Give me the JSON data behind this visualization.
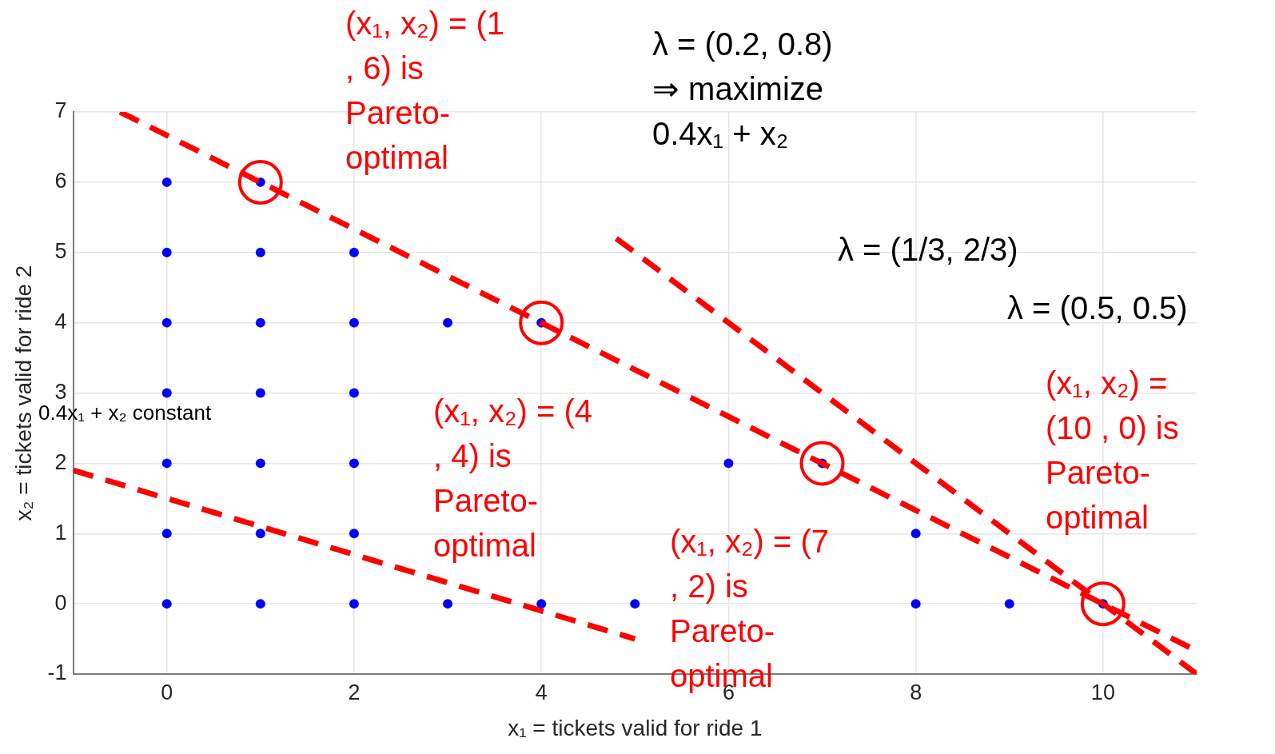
{
  "chart_data": {
    "type": "scatter",
    "xlabel": "x₁ = tickets valid for ride 1",
    "ylabel": "x₂ = tickets valid for ride 2",
    "xlim": [
      -1,
      11
    ],
    "ylim": [
      -1,
      7
    ],
    "xticks": [
      0,
      2,
      4,
      6,
      8,
      10
    ],
    "yticks": [
      -1,
      0,
      1,
      2,
      3,
      4,
      5,
      6,
      7
    ],
    "grid": true,
    "legend": false,
    "marker": "circle",
    "series": [
      {
        "color": "#0000ff",
        "x": [
          0,
          0,
          0,
          0,
          0,
          0,
          0,
          1,
          1,
          1,
          1,
          1,
          1,
          1,
          2,
          2,
          2,
          2,
          2,
          2,
          3,
          3,
          4,
          4,
          5,
          6,
          7,
          8,
          8,
          9,
          10
        ],
        "values": [
          0,
          1,
          2,
          3,
          4,
          5,
          6,
          0,
          1,
          2,
          3,
          4,
          5,
          6,
          0,
          1,
          2,
          3,
          4,
          5,
          0,
          4,
          0,
          4,
          0,
          2,
          2,
          0,
          1,
          0,
          0
        ]
      },
      {
        "color": "#ff0000",
        "x": [
          1,
          4,
          7,
          10
        ],
        "values": [
          6,
          4,
          2,
          0
        ]
      },
      {
        "type": "line",
        "color": "#ff0000",
        "line_style": "dashed",
        "marker": "none",
        "x": [
          -0.5,
          11
        ],
        "values": [
          7,
          -0.67
        ]
      },
      {
        "type": "line",
        "color": "#ff0000",
        "line_style": "dashed",
        "marker": "none",
        "x": [
          -1,
          5
        ],
        "values": [
          1.9,
          -0.5
        ]
      },
      {
        "type": "line",
        "color": "#ff0000",
        "line_style": "dashed",
        "marker": "none",
        "x": [
          4.8,
          11
        ],
        "values": [
          5.2,
          -1
        ]
      }
    ],
    "annotations": [
      "(x₁, x₂) = (1 , 6) is Pareto-optimal",
      "λ = (0.2, 0.8) ⇒ maximize 0.4x₁ + x₂",
      "λ = (1/3, 2/3)",
      "λ = (0.5, 0.5)",
      "(x₁, x₂) = (10 , 0) is Pareto-optimal",
      "0.4x₁ + x₂ constant",
      "(x₁, x₂) = (4 , 4) is Pareto-optimal",
      "(x₁, x₂) = (7 , 2) is Pareto-optimal"
    ]
  }
}
